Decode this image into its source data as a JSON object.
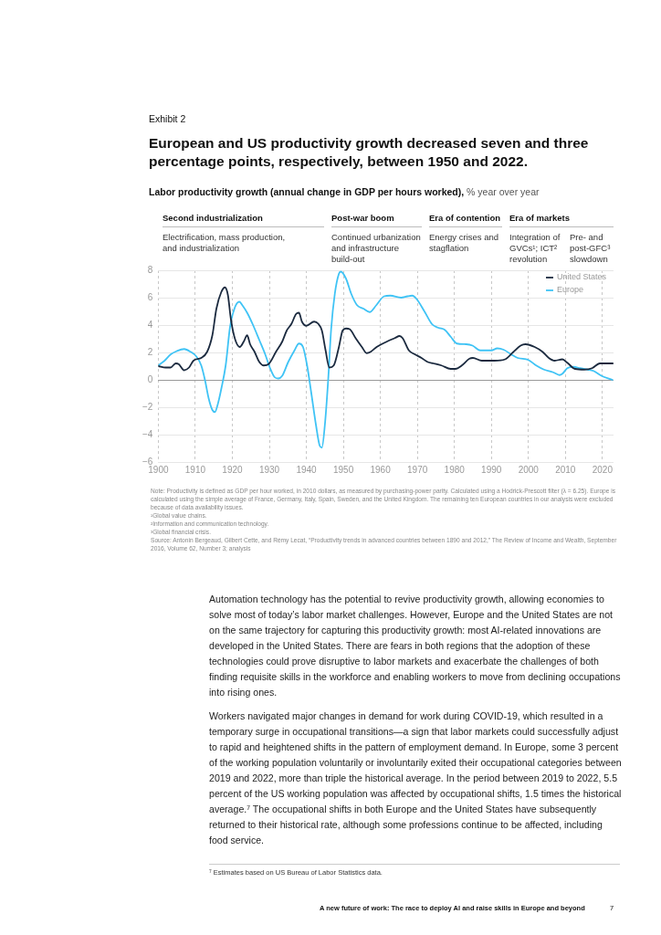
{
  "chart_data": {
    "type": "line",
    "title": "European and US productivity growth decreased seven and three percentage points, respectively, between 1950 and 2022.",
    "subtitle": "Labor productivity growth (annual change in GDP per hours worked),",
    "xlim": [
      1900,
      2023
    ],
    "xticks": [
      1900,
      1910,
      1920,
      1930,
      1940,
      1950,
      1960,
      1970,
      1980,
      1990,
      2000,
      2010,
      2020
    ],
    "ylim": [
      -6,
      8
    ],
    "yticks": [
      -6,
      -4,
      -2,
      0,
      2,
      4,
      6,
      8
    ],
    "grid": true,
    "legend": "top right",
    "series": [
      {
        "name": "United States",
        "color": "#1b2a3f",
        "x": [
          1900,
          1902,
          1903.3,
          1904.7,
          1905.5,
          1907,
          1908.3,
          1909.5,
          1911.6,
          1913.2,
          1914.6,
          1915.7,
          1917,
          1918,
          1918.8,
          1919.6,
          1920.7,
          1922,
          1923.1,
          1924,
          1924.8,
          1926,
          1927.3,
          1928.5,
          1929.8,
          1931.8,
          1933.5,
          1934.7,
          1936,
          1937.2,
          1938,
          1938.8,
          1940,
          1942.1,
          1943.2,
          1944.2,
          1945.2,
          1946.2,
          1947.4,
          1948.8,
          1949.8,
          1950.7,
          1951.7,
          1953.3,
          1955,
          1956.3,
          1957.4,
          1959,
          1961.8,
          1963.9,
          1965.2,
          1966,
          1967.7,
          1969.4,
          1971.1,
          1972.8,
          1974.4,
          1976.5,
          1979,
          1980.3,
          1982,
          1984.1,
          1985,
          1987.4,
          1990.8,
          1993.7,
          1995.8,
          1997.9,
          1999.2,
          2001.7,
          2003.8,
          2005.5,
          2007.1,
          2009.2,
          2010.5,
          2012.6,
          2015.1,
          2017.2,
          2019.3,
          2022.8
        ],
        "values": [
          1.0,
          0.9,
          0.9,
          1.2,
          1.15,
          0.7,
          0.9,
          1.4,
          1.6,
          2.05,
          3.25,
          5.2,
          6.4,
          6.75,
          6.2,
          4.45,
          3.0,
          2.4,
          2.8,
          3.25,
          2.6,
          2.05,
          1.3,
          1.05,
          1.15,
          2.05,
          2.8,
          3.6,
          4.1,
          4.8,
          4.9,
          4.25,
          3.95,
          4.25,
          4.1,
          3.6,
          2.15,
          0.9,
          1.05,
          2.4,
          3.6,
          3.75,
          3.7,
          3.05,
          2.4,
          1.95,
          2.05,
          2.4,
          2.8,
          3.05,
          3.2,
          3.05,
          2.15,
          1.85,
          1.6,
          1.3,
          1.2,
          1.05,
          0.8,
          0.8,
          1.05,
          1.55,
          1.6,
          1.4,
          1.4,
          1.5,
          2.0,
          2.5,
          2.6,
          2.4,
          2.05,
          1.6,
          1.4,
          1.5,
          1.25,
          0.8,
          0.75,
          0.85,
          1.2,
          1.2
        ]
      },
      {
        "name": "Europe",
        "color": "#3fc3f5",
        "x": [
          1900,
          1901.7,
          1903.3,
          1905,
          1907,
          1908.7,
          1910.3,
          1911.6,
          1912.6,
          1913.6,
          1914.6,
          1915.3,
          1916.1,
          1917.1,
          1918.2,
          1919.4,
          1920.7,
          1921.9,
          1922.7,
          1924,
          1925.6,
          1927.3,
          1928.9,
          1930.2,
          1931.4,
          1932.4,
          1933.5,
          1935.1,
          1936.8,
          1938,
          1939.1,
          1940.2,
          1941.3,
          1942.6,
          1943.6,
          1944.2,
          1945,
          1945.9,
          1946.7,
          1947.7,
          1948.8,
          1949.3,
          1950.7,
          1952.1,
          1953.7,
          1955.4,
          1957.1,
          1958.9,
          1961,
          1962.7,
          1965.6,
          1967.3,
          1968.6,
          1969.8,
          1971.9,
          1974,
          1975.7,
          1977.4,
          1979,
          1980.7,
          1983.2,
          1984.9,
          1987,
          1990,
          1991.6,
          1993.3,
          1995.4,
          1997.1,
          2000,
          2002.1,
          2004.2,
          2006.7,
          2008.4,
          2009.2,
          2010.5,
          2012.2,
          2013.9,
          2016,
          2017.6,
          2019.7,
          2022.7
        ],
        "values": [
          1.05,
          1.4,
          1.85,
          2.1,
          2.25,
          2.05,
          1.7,
          1.05,
          0,
          -1.35,
          -2.2,
          -2.35,
          -1.75,
          -0.55,
          1.05,
          3.9,
          5.3,
          5.7,
          5.45,
          4.9,
          4.0,
          2.9,
          1.85,
          0.85,
          0.2,
          0.1,
          0.3,
          1.3,
          2.15,
          2.65,
          2.4,
          1.05,
          -0.9,
          -3.3,
          -4.8,
          -4.95,
          -3.3,
          0,
          3.7,
          6.3,
          7.75,
          7.9,
          7.4,
          6.3,
          5.45,
          5.2,
          4.95,
          5.45,
          6.1,
          6.15,
          6.0,
          6.1,
          6.15,
          5.9,
          5.0,
          4.05,
          3.8,
          3.65,
          3.15,
          2.65,
          2.6,
          2.5,
          2.15,
          2.15,
          2.3,
          2.2,
          1.85,
          1.6,
          1.45,
          1.05,
          0.75,
          0.55,
          0.35,
          0.45,
          0.85,
          0.95,
          0.85,
          0.75,
          0.65,
          0.3,
          0.0
        ]
      }
    ],
    "annotations": [
      "Exhibit 2",
      "Second industrialization",
      "Post-war boom",
      "Era of contention",
      "Era of markets",
      "Electrification, mass production, and industrialization",
      "Continued urbanization and infrastructure build-out",
      "Energy crises and stagflation",
      "Integration of GVCs¹; ICT² revolution",
      "Pre- and post-GFC³ slowdown",
      "Note: Productivity is defined as GDP per hour worked, in 2010 dollars, as measured by purchasing-power parity. Calculated using a Hodrick-Prescott filter (λ = 6.25). Europe is calculated using the simple average of France, Germany, Italy, Spain, Sweden, and the United Kingdom. The remaining ten European countries in our analysis were excluded because of data availability issues.",
      "¹Global value chains.",
      "²Information and communication technology.",
      "³Global financial crisis.",
      "Source: Antonin Bergeaud, Gilbert Cette, and Rémy Lecat, “Productivity trends in advanced countries between 1890 and 2012,” The Review of Income and Wealth, September 2016, Volume 62, Number 3; analysis",
      "Automation technology has the potential to revive productivity growth, allowing economies to solve most of today’s labor market challenges. However, Europe and the United States are not on the same trajectory for capturing this productivity growth: most AI-related innovations are developed in the United States. There are fears in both regions that the adoption of these technologies could prove disruptive to labor markets and exacerbate the challenges of both finding requisite skills in the workforce and enabling workers to move from declining occupations into rising ones.",
      "Workers navigated major changes in demand for work during COVID-19, which resulted in a temporary surge in occupational transitions—a sign that labor markets could successfully adjust to rapid and heightened shifts in the pattern of employment demand. In Europe, some 3 percent of the working population voluntarily or involuntarily exited their occupational categories between 2019 and 2022, more than triple the historical average. In the period between 2019 to 2022, 5.5 percent of the US working population was affected by occupational shifts, 1.5 times the historical average.⁷ The occupational shifts in both Europe and the United States have subsequently returned to their historical rate, although some professions continue to be affected, including food service.",
      "⁷  Estimates based on US Bureau of Labor Statistics data.",
      "A new future of work: The race to deploy AI and raise skills in Europe and beyond",
      "7",
      "% year over year"
    ]
  }
}
